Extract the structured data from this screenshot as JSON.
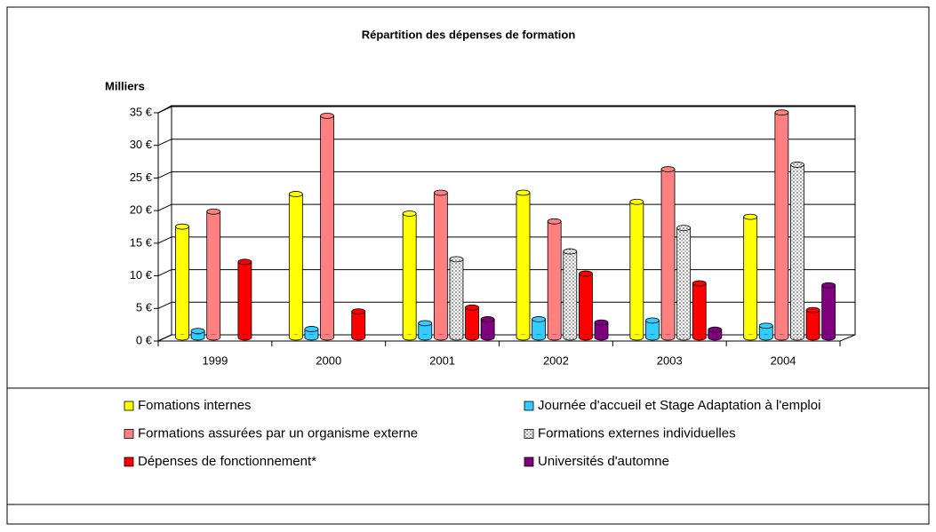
{
  "chart_data": {
    "type": "bar3d",
    "title": "Répartition des dépenses de formation",
    "y_label": "Milliers",
    "categories": [
      "1999",
      "2000",
      "2001",
      "2002",
      "2003",
      "2004"
    ],
    "series": [
      {
        "name": "Fomations internes",
        "color": "#ffff00",
        "values": [
          17,
          22,
          19,
          22.2,
          20.8,
          18.5
        ]
      },
      {
        "name": "Journée d'accueil et Stage Adaptation à l'emploi",
        "color": "#33ccff",
        "values": [
          1,
          1.3,
          2.2,
          2.8,
          2.6,
          1.8
        ]
      },
      {
        "name": "Formations assurées par un organisme externe",
        "color": "#ff8080",
        "values": [
          19.3,
          34,
          22.2,
          17.8,
          25.8,
          34.5
        ]
      },
      {
        "name": "Formations externes individuelles",
        "color": "#d0d0d0",
        "pattern": "dots",
        "values": [
          null,
          null,
          12,
          13.2,
          16.8,
          26.5
        ]
      },
      {
        "name": "Dépenses de fonctionnement*",
        "color": "#ff0000",
        "values": [
          11.6,
          4,
          4.6,
          9.8,
          8.3,
          4.2
        ]
      },
      {
        "name": "Universités d'automne",
        "color": "#800080",
        "values": [
          null,
          null,
          2.8,
          2.3,
          1.2,
          8
        ]
      }
    ],
    "ylim": [
      0,
      35
    ],
    "yticks": [
      {
        "value": 0,
        "label": "0 €"
      },
      {
        "value": 5,
        "label": "5 €"
      },
      {
        "value": 10,
        "label": "10 €"
      },
      {
        "value": 15,
        "label": "15 €"
      },
      {
        "value": 20,
        "label": "20 €"
      },
      {
        "value": 25,
        "label": "25 €"
      },
      {
        "value": 30,
        "label": "30 €"
      },
      {
        "value": 35,
        "label": "35 €"
      }
    ],
    "grid": true,
    "legend": "bottom"
  }
}
